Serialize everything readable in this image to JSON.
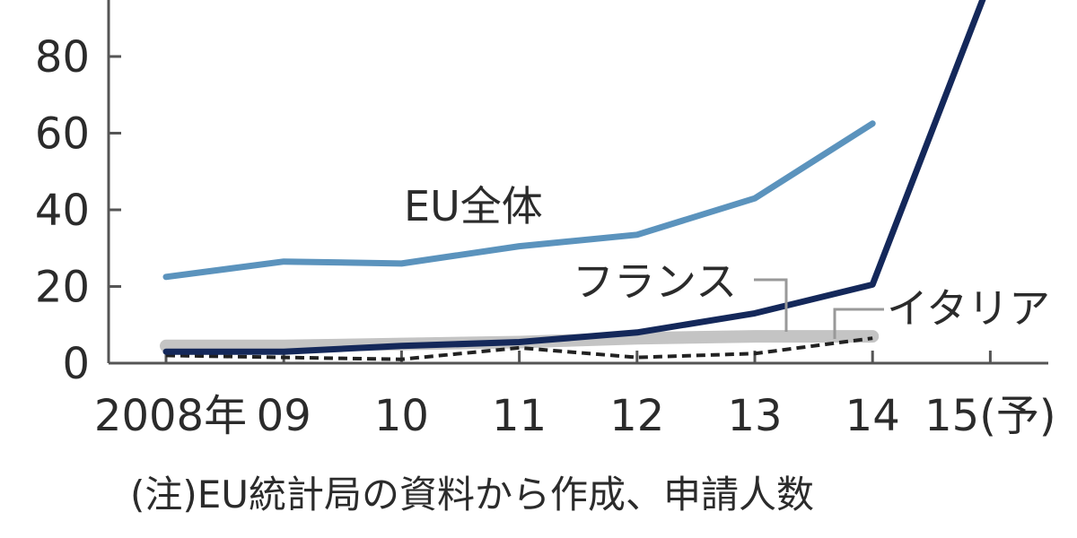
{
  "chart_data": {
    "type": "line",
    "categories": [
      "2008年",
      "09",
      "10",
      "11",
      "12",
      "13",
      "14",
      "15(予)"
    ],
    "yticks": [
      "0",
      "20",
      "40",
      "60",
      "80"
    ],
    "ylim": [
      0,
      100
    ],
    "grid": false,
    "series": [
      {
        "name": "EU全体",
        "values": [
          22.5,
          26.5,
          26,
          30.5,
          33.5,
          43,
          62.5,
          null
        ],
        "color": "#5b93bd",
        "style": "solid"
      },
      {
        "name": "",
        "values": [
          3,
          3,
          4.5,
          5.5,
          8,
          13,
          20.5,
          100
        ],
        "color": "#14285a",
        "style": "solid"
      },
      {
        "name": "フランス",
        "values": [
          4.5,
          4.5,
          5,
          5.5,
          6.5,
          7,
          7,
          null
        ],
        "color": "#c4c4c4",
        "style": "band"
      },
      {
        "name": "イタリア",
        "values": [
          2,
          1.5,
          1,
          4,
          1.5,
          2.5,
          6.5,
          null
        ],
        "color": "#222222",
        "style": "dashed"
      }
    ],
    "note": "(注)EU統計局の資料から作成、申請人数"
  }
}
